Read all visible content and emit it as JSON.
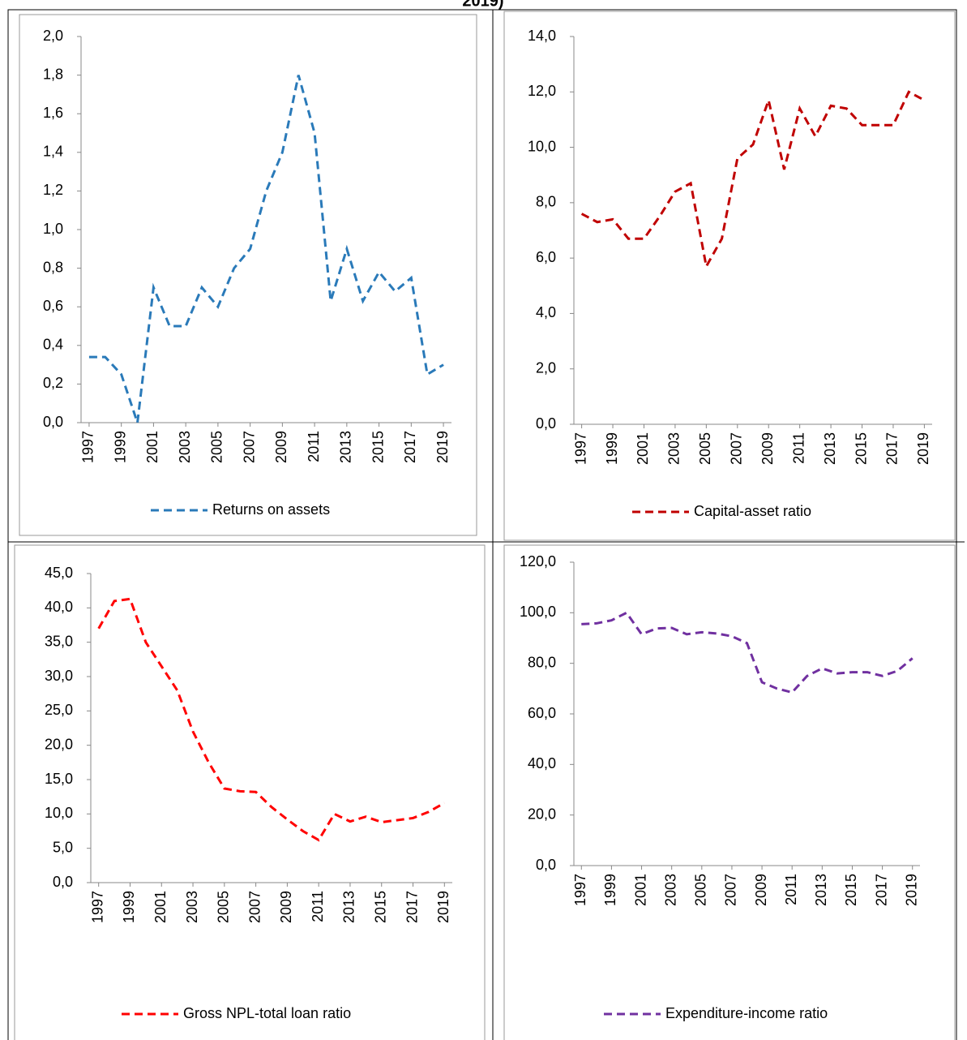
{
  "header": {
    "title": "2019)"
  },
  "chart_data": [
    {
      "type": "line",
      "x": [
        1997,
        1998,
        1999,
        2000,
        2001,
        2002,
        2003,
        2004,
        2005,
        2006,
        2007,
        2008,
        2009,
        2010,
        2011,
        2012,
        2013,
        2014,
        2015,
        2016,
        2017,
        2018,
        2019
      ],
      "xlim": [
        1997,
        2019
      ],
      "xticks": [
        1997,
        1999,
        2001,
        2003,
        2005,
        2007,
        2009,
        2011,
        2013,
        2015,
        2017,
        2019
      ],
      "ylim": [
        0,
        2
      ],
      "yticks": [
        {
          "value": 0,
          "label": "0,0"
        },
        {
          "value": 0.2,
          "label": "0,2"
        },
        {
          "value": 0.4,
          "label": "0,4"
        },
        {
          "value": 0.6,
          "label": "0,6"
        },
        {
          "value": 0.8,
          "label": "0,8"
        },
        {
          "value": 1.0,
          "label": "1,0"
        },
        {
          "value": 1.2,
          "label": "1,2"
        },
        {
          "value": 1.4,
          "label": "1,4"
        },
        {
          "value": 1.6,
          "label": "1,6"
        },
        {
          "value": 1.8,
          "label": "1,8"
        },
        {
          "value": 2.0,
          "label": "2,0"
        }
      ],
      "series": [
        {
          "name": "Returns on assets",
          "color": "#2a7ab9",
          "values": [
            0.34,
            0.34,
            0.25,
            0.0,
            0.7,
            0.5,
            0.5,
            0.7,
            0.6,
            0.8,
            0.9,
            1.2,
            1.4,
            1.8,
            1.5,
            0.63,
            0.9,
            0.63,
            0.78,
            0.68,
            0.75,
            0.25,
            0.3
          ]
        }
      ]
    },
    {
      "type": "line",
      "x": [
        1997,
        1998,
        1999,
        2000,
        2001,
        2002,
        2003,
        2004,
        2005,
        2006,
        2007,
        2008,
        2009,
        2010,
        2011,
        2012,
        2013,
        2014,
        2015,
        2016,
        2017,
        2018,
        2019
      ],
      "xlim": [
        1997,
        2019
      ],
      "xticks": [
        1997,
        1999,
        2001,
        2003,
        2005,
        2007,
        2009,
        2011,
        2013,
        2015,
        2017,
        2019
      ],
      "ylim": [
        0,
        14
      ],
      "yticks": [
        {
          "value": 0,
          "label": "0,0"
        },
        {
          "value": 2,
          "label": "2,0"
        },
        {
          "value": 4,
          "label": "4,0"
        },
        {
          "value": 6,
          "label": "6,0"
        },
        {
          "value": 8,
          "label": "8,0"
        },
        {
          "value": 10,
          "label": "10,0"
        },
        {
          "value": 12,
          "label": "12,0"
        },
        {
          "value": 14,
          "label": "14,0"
        }
      ],
      "series": [
        {
          "name": "Capital-asset ratio",
          "color": "#c00000",
          "values": [
            7.6,
            7.3,
            7.4,
            6.7,
            6.7,
            7.5,
            8.4,
            8.7,
            5.7,
            6.7,
            9.6,
            10.1,
            11.7,
            9.2,
            11.4,
            10.4,
            11.5,
            11.4,
            10.8,
            10.8,
            10.8,
            12.0,
            11.7
          ]
        }
      ]
    },
    {
      "type": "line",
      "x": [
        1997,
        1998,
        1999,
        2000,
        2001,
        2002,
        2003,
        2004,
        2005,
        2006,
        2007,
        2008,
        2009,
        2010,
        2011,
        2012,
        2013,
        2014,
        2015,
        2016,
        2017,
        2018,
        2019
      ],
      "xlim": [
        1997,
        2019
      ],
      "xticks": [
        1997,
        1999,
        2001,
        2003,
        2005,
        2007,
        2009,
        2011,
        2013,
        2015,
        2017,
        2019
      ],
      "ylim": [
        0,
        45
      ],
      "yticks": [
        {
          "value": 0,
          "label": "0,0"
        },
        {
          "value": 5,
          "label": "5,0"
        },
        {
          "value": 10,
          "label": "10,0"
        },
        {
          "value": 15,
          "label": "15,0"
        },
        {
          "value": 20,
          "label": "20,0"
        },
        {
          "value": 25,
          "label": "25,0"
        },
        {
          "value": 30,
          "label": "30,0"
        },
        {
          "value": 35,
          "label": "35,0"
        },
        {
          "value": 40,
          "label": "40,0"
        },
        {
          "value": 45,
          "label": "45,0"
        }
      ],
      "series": [
        {
          "name": "Gross NPL-total loan ratio",
          "color": "#ff0000",
          "values": [
            37,
            41,
            41.3,
            35,
            31.5,
            28,
            22,
            17.5,
            13.7,
            13.3,
            13.2,
            11,
            9.2,
            7.5,
            6.2,
            10,
            8.9,
            9.6,
            8.8,
            9.1,
            9.4,
            10.3,
            11.6
          ]
        }
      ]
    },
    {
      "type": "line",
      "x": [
        1997,
        1998,
        1999,
        2000,
        2001,
        2002,
        2003,
        2004,
        2005,
        2006,
        2007,
        2008,
        2009,
        2010,
        2011,
        2012,
        2013,
        2014,
        2015,
        2016,
        2017,
        2018,
        2019
      ],
      "xlim": [
        1997,
        2019
      ],
      "xticks": [
        1997,
        1999,
        2001,
        2003,
        2005,
        2007,
        2009,
        2011,
        2013,
        2015,
        2017,
        2019
      ],
      "ylim": [
        0,
        120
      ],
      "yticks": [
        {
          "value": 0,
          "label": "0,0"
        },
        {
          "value": 20,
          "label": "20,0"
        },
        {
          "value": 40,
          "label": "40,0"
        },
        {
          "value": 60,
          "label": "60,0"
        },
        {
          "value": 80,
          "label": "80,0"
        },
        {
          "value": 100,
          "label": "100,0"
        },
        {
          "value": 120,
          "label": "120,0"
        }
      ],
      "series": [
        {
          "name": "Expenditure-income ratio",
          "color": "#7030a0",
          "values": [
            95.5,
            95.8,
            97,
            100,
            91.5,
            93.8,
            94,
            91.5,
            92.3,
            91.8,
            90.7,
            88,
            72.5,
            70,
            68.5,
            75,
            78,
            76,
            76.5,
            76.5,
            75,
            77,
            82
          ]
        }
      ]
    }
  ]
}
